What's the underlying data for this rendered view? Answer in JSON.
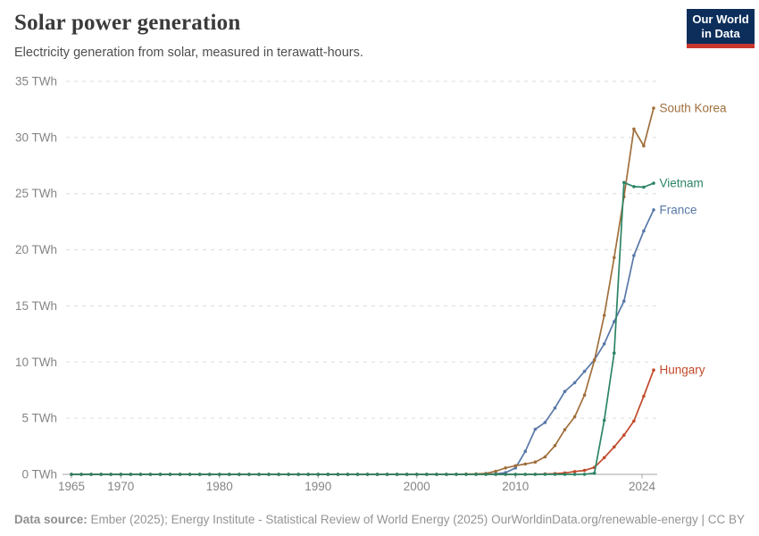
{
  "header": {
    "title": "Solar power generation",
    "subtitle": "Electricity generation from solar, measured in terawatt-hours.",
    "logo": {
      "line1": "Our World",
      "line2": "in Data"
    }
  },
  "footer": {
    "datasource_label": "Data source:",
    "datasource_text": " Ember (2025); Energy Institute - Statistical Review of World Energy (2025)",
    "credit": "OurWorldinData.org/renewable-energy | CC BY"
  },
  "colors": {
    "grid": "#dcdcdc",
    "axis": "#a3a3a3",
    "tick_text": "#858585",
    "background": "#ffffff"
  },
  "chart_data": {
    "type": "line",
    "title": "Solar power generation",
    "subtitle": "Electricity generation from solar, measured in terawatt-hours.",
    "unit": "TWh",
    "x_range": [
      1965,
      2024
    ],
    "ylim": [
      0,
      35
    ],
    "y_ticks": [
      0,
      5,
      10,
      15,
      20,
      25,
      30,
      35
    ],
    "x_ticks": [
      1965,
      1970,
      1980,
      1990,
      2000,
      2010,
      2024
    ],
    "grid": "dashed",
    "legend_position": "end-of-line",
    "series": [
      {
        "name": "France",
        "color": "#5878a8",
        "start_year": 1965,
        "values": [
          0,
          0,
          0,
          0,
          0,
          0,
          0,
          0,
          0,
          0,
          0,
          0,
          0,
          0,
          0,
          0,
          0,
          0,
          0,
          0,
          0,
          0,
          0,
          0,
          0,
          0,
          0,
          0,
          0,
          0,
          0,
          0,
          0,
          0,
          0,
          0,
          0,
          0,
          0,
          0,
          0,
          0,
          0.02,
          0.04,
          0.15,
          0.57,
          2.05,
          4.02,
          4.62,
          5.91,
          7.38,
          8.16,
          9.17,
          10.2,
          11.62,
          13.6,
          15.42,
          19.49,
          21.67,
          23.55
        ]
      },
      {
        "name": "South Korea",
        "color": "#a06f3c",
        "start_year": 1965,
        "values": [
          0,
          0,
          0,
          0,
          0,
          0,
          0,
          0,
          0,
          0,
          0,
          0,
          0,
          0,
          0,
          0,
          0,
          0,
          0,
          0,
          0,
          0,
          0,
          0,
          0,
          0,
          0,
          0,
          0,
          0,
          0,
          0,
          0,
          0,
          0,
          0,
          0,
          0,
          0,
          0.01,
          0.02,
          0.04,
          0.08,
          0.28,
          0.57,
          0.77,
          0.92,
          1.1,
          1.56,
          2.56,
          3.98,
          5.12,
          7.06,
          10.15,
          14.16,
          19.3,
          24.72,
          30.75,
          29.25,
          32.61
        ]
      },
      {
        "name": "Hungary",
        "color": "#c24a2b",
        "start_year": 1965,
        "values": [
          0,
          0,
          0,
          0,
          0,
          0,
          0,
          0,
          0,
          0,
          0,
          0,
          0,
          0,
          0,
          0,
          0,
          0,
          0,
          0,
          0,
          0,
          0,
          0,
          0,
          0,
          0,
          0,
          0,
          0,
          0,
          0,
          0,
          0,
          0,
          0,
          0,
          0,
          0,
          0,
          0,
          0,
          0,
          0,
          0,
          0,
          0,
          0.01,
          0.03,
          0.06,
          0.13,
          0.25,
          0.35,
          0.62,
          1.49,
          2.44,
          3.49,
          4.75,
          6.96,
          9.29
        ]
      },
      {
        "name": "Vietnam",
        "color": "#2c8465",
        "start_year": 1965,
        "values": [
          0,
          0,
          0,
          0,
          0,
          0,
          0,
          0,
          0,
          0,
          0,
          0,
          0,
          0,
          0,
          0,
          0,
          0,
          0,
          0,
          0,
          0,
          0,
          0,
          0,
          0,
          0,
          0,
          0,
          0,
          0,
          0,
          0,
          0,
          0,
          0,
          0,
          0,
          0,
          0,
          0,
          0,
          0,
          0,
          0,
          0,
          0,
          0,
          0,
          0,
          0,
          0,
          0.01,
          0.1,
          4.81,
          10.8,
          25.99,
          25.62,
          25.57,
          25.92
        ]
      }
    ]
  }
}
